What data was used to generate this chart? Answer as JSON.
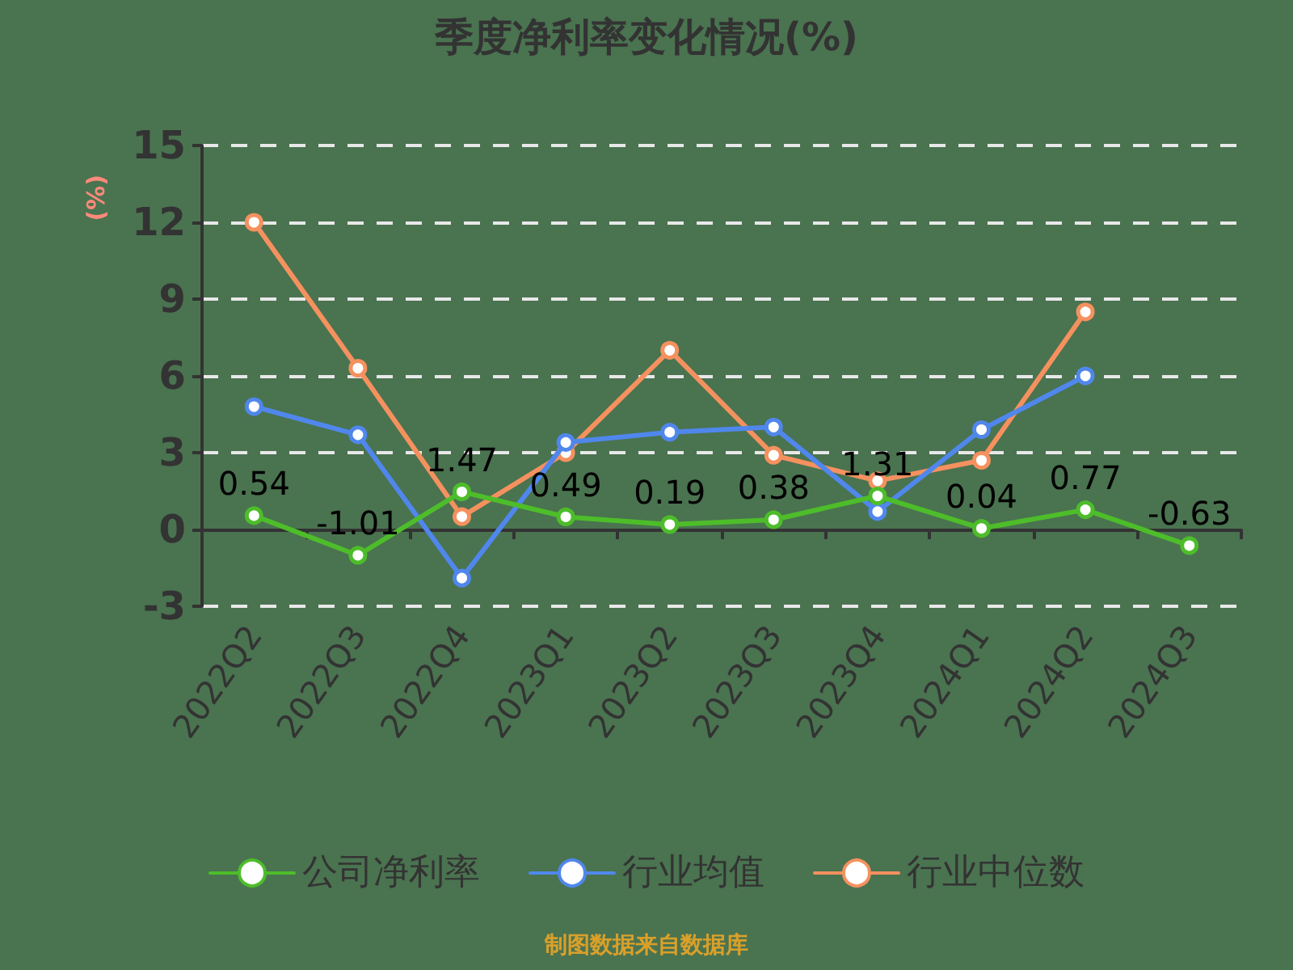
{
  "chart_data": {
    "type": "line",
    "title": "季度净利率变化情况(%)",
    "ylabel": "(%)",
    "categories": [
      "2022Q2",
      "2022Q3",
      "2022Q4",
      "2023Q1",
      "2023Q2",
      "2023Q3",
      "2023Q4",
      "2024Q1",
      "2024Q2",
      "2024Q3"
    ],
    "series": [
      {
        "name": "公司净利率",
        "color": "#4dbd2a",
        "values": [
          0.54,
          -1.01,
          1.47,
          0.49,
          0.19,
          0.38,
          1.31,
          0.04,
          0.77,
          -0.63
        ],
        "value_labels": [
          "0.54",
          "-1.01",
          "1.47",
          "0.49",
          "0.19",
          "0.38",
          "1.31",
          "0.04",
          "0.77",
          "-0.63"
        ]
      },
      {
        "name": "行业均值",
        "color": "#5087ec",
        "values": [
          4.8,
          3.7,
          -1.9,
          3.4,
          3.8,
          4.0,
          0.7,
          3.9,
          6.0,
          null
        ]
      },
      {
        "name": "行业中位数",
        "color": "#f5915f",
        "values": [
          12.0,
          6.3,
          0.5,
          3.0,
          7.0,
          2.9,
          1.9,
          2.7,
          8.5,
          null
        ]
      }
    ],
    "ylim": [
      -3,
      15
    ],
    "yticks": [
      -3,
      0,
      3,
      6,
      9,
      12,
      15
    ],
    "grid": "y",
    "legend": "bottom",
    "marker": "circle",
    "line_style": "solid",
    "annotations": [
      "制图数据来自数据库"
    ]
  }
}
